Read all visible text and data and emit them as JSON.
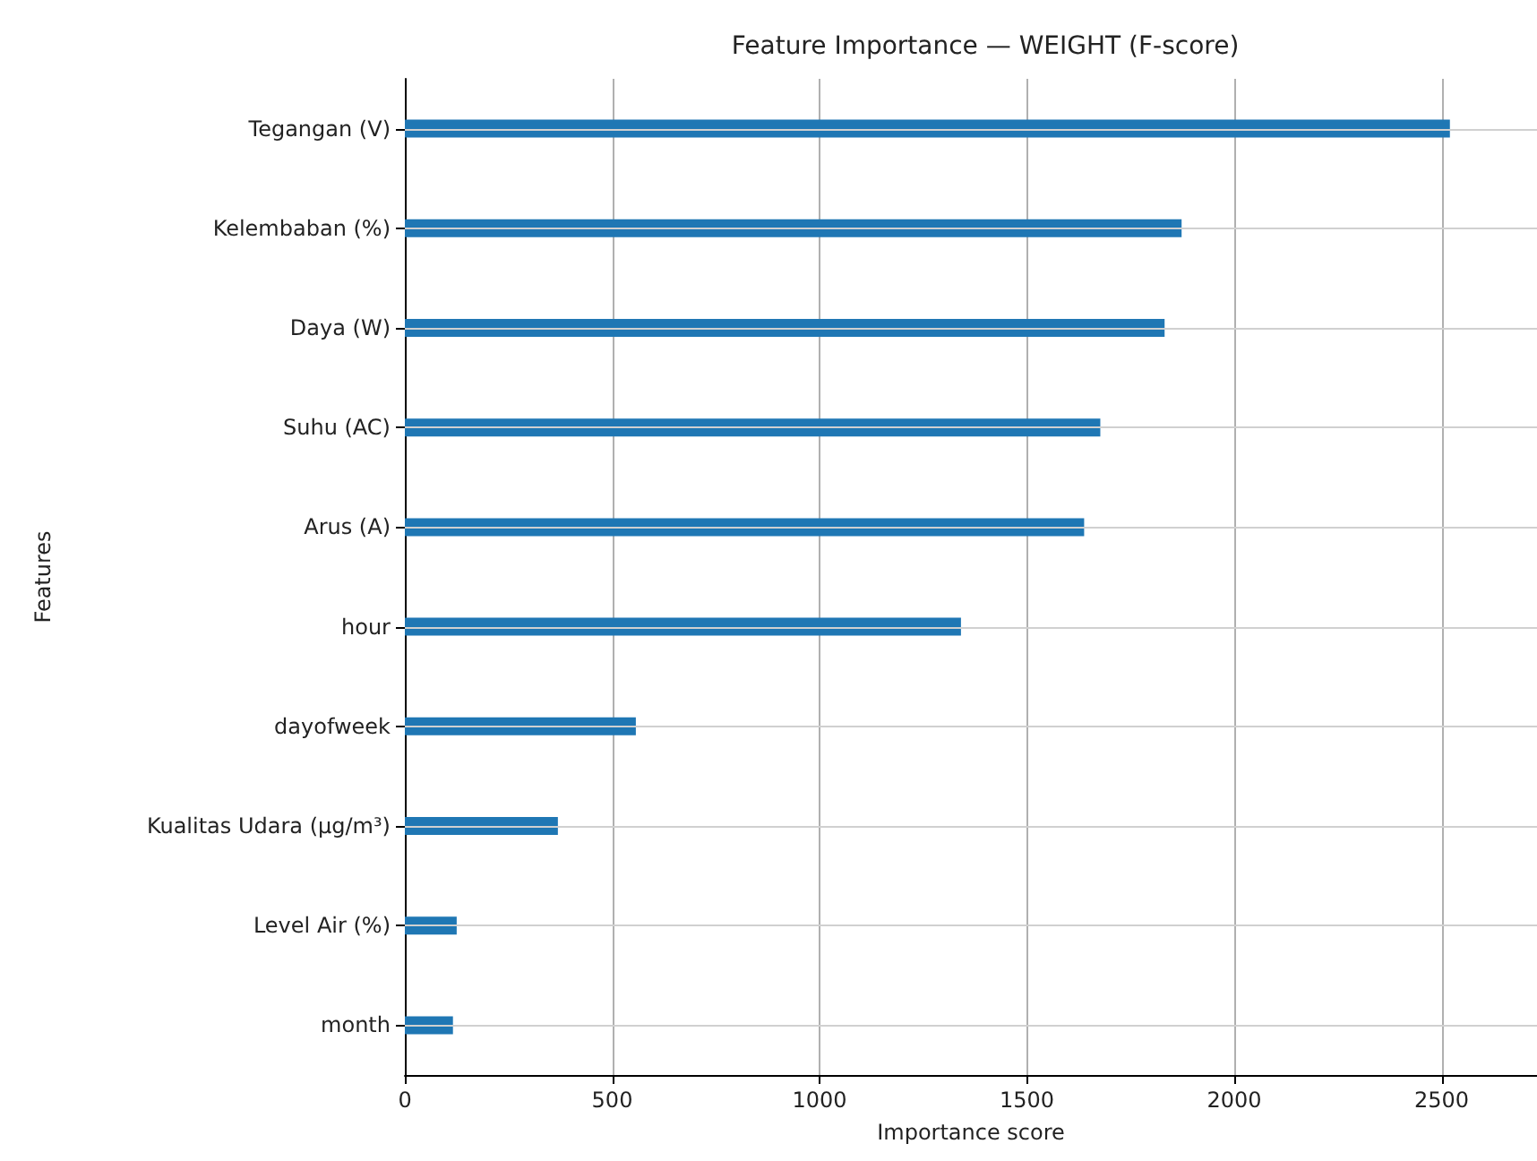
{
  "chart_data": {
    "type": "bar",
    "orientation": "horizontal",
    "title": "Feature Importance — WEIGHT (F-score)",
    "xlabel": "Importance score",
    "ylabel": "Features",
    "categories": [
      "Tegangan (V)",
      "Kelembaban (%)",
      "Daya (W)",
      "Suhu (AC)",
      "Arus (A)",
      "hour",
      "dayofweek",
      "Kualitas Udara (µg/m³)",
      "Level Air (%)",
      "month"
    ],
    "values": [
      2520,
      1873,
      1832,
      1677,
      1638,
      1341,
      557,
      369,
      125,
      116
    ],
    "color": "#1f77b4",
    "xlim": [
      0,
      2730
    ],
    "xticks": [
      0,
      500,
      1000,
      1500,
      2000,
      2500
    ],
    "grid": true
  }
}
